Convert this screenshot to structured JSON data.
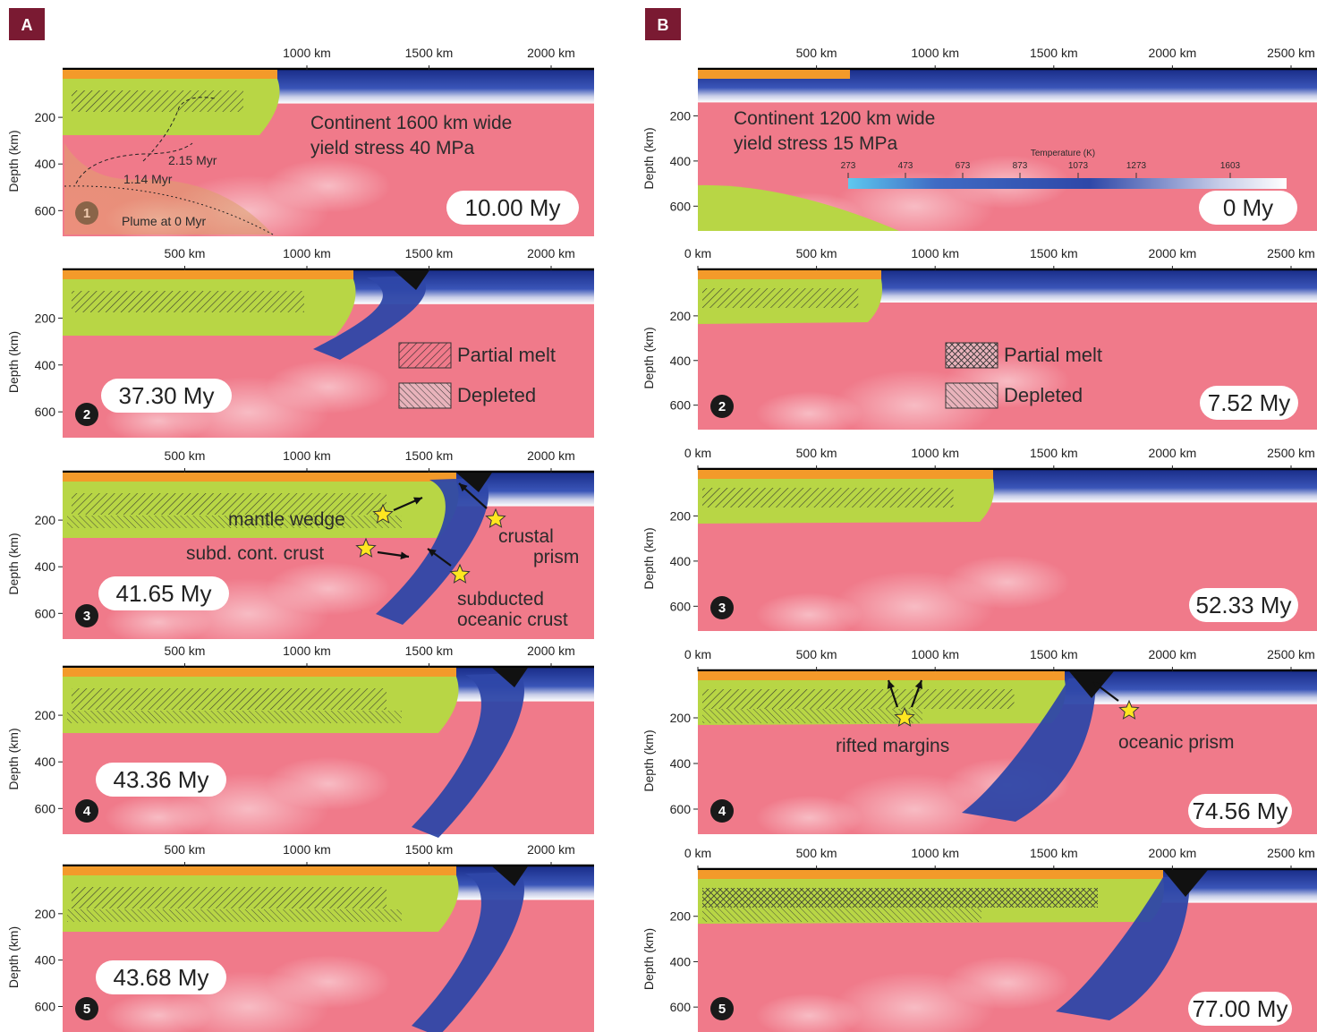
{
  "colors": {
    "mantle": "#f07a8a",
    "lithosphere": "#2e47a8",
    "continent_mantle": "#b8d645",
    "crust": "#f39a2a",
    "sediment": "#111111",
    "label_bg": "#7a1a32",
    "star": "#ffe620"
  },
  "panels": {
    "A": {
      "label": "A",
      "x_ticks": [
        "500 km",
        "1000 km",
        "1500 km",
        "2000 km"
      ],
      "depth_ticks": [
        "200",
        "400",
        "600"
      ],
      "depth_label": "Depth (km)",
      "subpanels": [
        {
          "num": "1",
          "time": "10.00 My"
        },
        {
          "num": "2",
          "time": "37.30 My"
        },
        {
          "num": "3",
          "time": "41.65 My"
        },
        {
          "num": "4",
          "time": "43.36 My"
        },
        {
          "num": "5",
          "time": "43.68 My"
        }
      ],
      "setup_line1": "Continent 1600 km wide",
      "setup_line2": "yield stress 40 MPa",
      "contours": [
        "2.15 Myr",
        "1.14 Myr",
        "Plume at 0 Myr"
      ],
      "legend": {
        "partial_melt": "Partial melt",
        "depleted": "Depleted"
      },
      "annotations": {
        "mantle_wedge": "mantle wedge",
        "subd_cont_crust": "subd. cont. crust",
        "crustal_prism_1": "crustal",
        "crustal_prism_2": "prism",
        "subducted_oc_1": "subducted",
        "subducted_oc_2": "oceanic crust"
      }
    },
    "B": {
      "label": "B",
      "x_ticks_first": [
        "500 km",
        "1000 km",
        "1500 km",
        "2000 km",
        "2500 km"
      ],
      "x_ticks": [
        "0 km",
        "500 km",
        "1000 km",
        "1500 km",
        "2000 km",
        "2500 km"
      ],
      "depth_ticks": [
        "200",
        "400",
        "600"
      ],
      "depth_label": "Depth (km)",
      "subpanels": [
        {
          "num": "1",
          "time": "0 My"
        },
        {
          "num": "2",
          "time": "7.52 My"
        },
        {
          "num": "3",
          "time": "52.33 My"
        },
        {
          "num": "4",
          "time": "74.56 My"
        },
        {
          "num": "5",
          "time": "77.00 My"
        }
      ],
      "setup_line1": "Continent 1200 km wide",
      "setup_line2": "yield stress 15 MPa",
      "colorbar": {
        "title": "Temperature (K)",
        "ticks": [
          "273",
          "473",
          "673",
          "873",
          "1073",
          "1273",
          "1603"
        ]
      },
      "legend": {
        "partial_melt": "Partial melt",
        "depleted": "Depleted"
      },
      "annotations": {
        "rifted_margins": "rifted margins",
        "oceanic_prism": "oceanic prism"
      }
    }
  }
}
